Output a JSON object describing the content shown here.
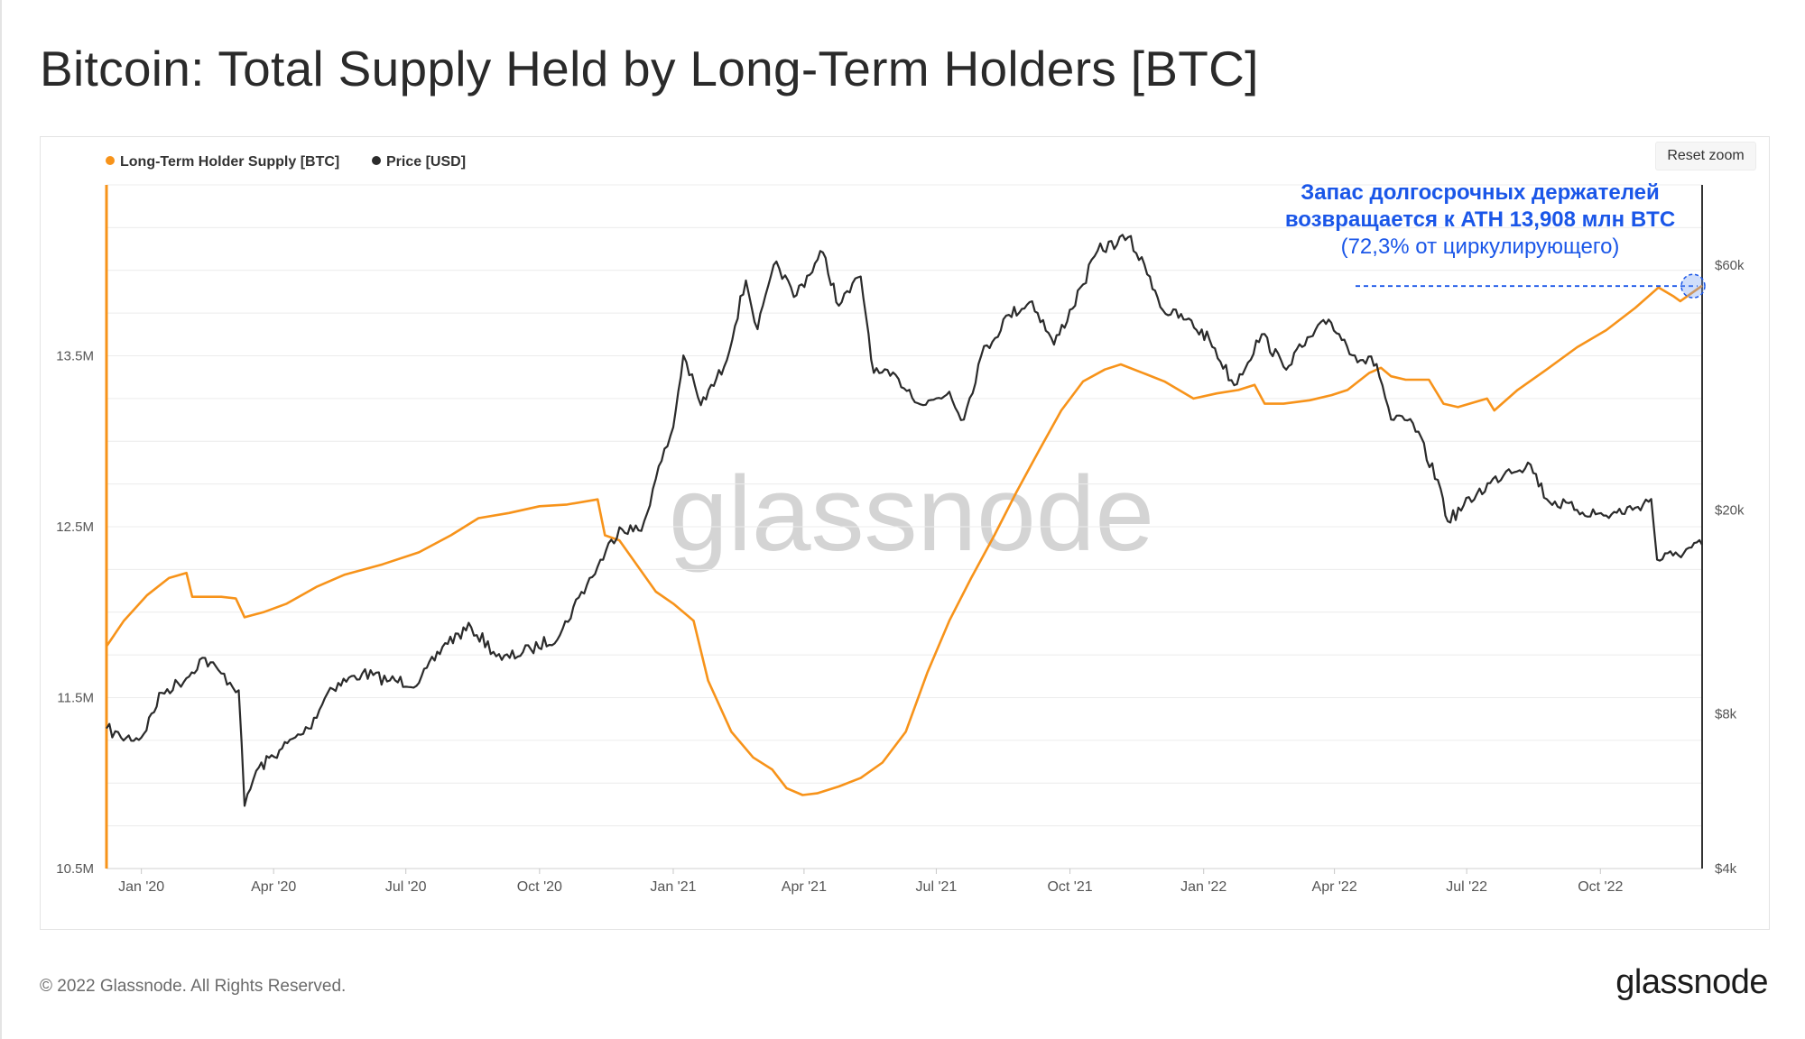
{
  "page": {
    "title": "Bitcoin: Total Supply Held by Long-Term Holders [BTC]",
    "reset_zoom_label": "Reset zoom",
    "watermark": "glassnode",
    "footer_copyright": "© 2022 Glassnode. All Rights Reserved.",
    "footer_logo": "glassnode"
  },
  "annotation": {
    "line1": "Запас долгосрочных держателей",
    "line2": "возвращается к ATH 13,908 млн BTC",
    "line3": "(72,3% от циркулирующего)",
    "color": "#1a56e8"
  },
  "chart_data": {
    "type": "line",
    "title": "Bitcoin: Total Supply Held by Long-Term Holders [BTC]",
    "legend_position": "top-left",
    "x_ticks": [
      "Jan '20",
      "Apr '20",
      "Jul '20",
      "Oct '20",
      "Jan '21",
      "Apr '21",
      "Jul '21",
      "Oct '21",
      "Jan '22",
      "Apr '22",
      "Jul '22",
      "Oct '22"
    ],
    "x_range": [
      "2019-12-08",
      "2022-12-10"
    ],
    "y_left": {
      "label": "",
      "ticks": [
        "10.5M",
        "11.5M",
        "12.5M",
        "13.5M"
      ],
      "range": [
        10.5,
        14.5
      ],
      "unit": "M BTC"
    },
    "y_right": {
      "label": "",
      "scale": "log",
      "ticks": [
        "$4k",
        "$8k",
        "$20k",
        "$60k"
      ],
      "values": [
        4000,
        8000,
        20000,
        60000
      ],
      "range": [
        4000,
        86000
      ]
    },
    "series": [
      {
        "name": "Long-Term Holder Supply [BTC]",
        "axis": "left",
        "color": "#f7931a",
        "points": [
          [
            "2019-12-08",
            11.8
          ],
          [
            "2019-12-20",
            11.95
          ],
          [
            "2020-01-05",
            12.1
          ],
          [
            "2020-01-20",
            12.2
          ],
          [
            "2020-02-01",
            12.23
          ],
          [
            "2020-02-05",
            12.09
          ],
          [
            "2020-02-25",
            12.09
          ],
          [
            "2020-03-06",
            12.08
          ],
          [
            "2020-03-12",
            11.97
          ],
          [
            "2020-03-25",
            12.0
          ],
          [
            "2020-04-10",
            12.05
          ],
          [
            "2020-05-01",
            12.15
          ],
          [
            "2020-05-20",
            12.22
          ],
          [
            "2020-06-15",
            12.28
          ],
          [
            "2020-07-10",
            12.35
          ],
          [
            "2020-08-01",
            12.45
          ],
          [
            "2020-08-20",
            12.55
          ],
          [
            "2020-09-10",
            12.58
          ],
          [
            "2020-10-01",
            12.62
          ],
          [
            "2020-10-20",
            12.63
          ],
          [
            "2020-11-10",
            12.66
          ],
          [
            "2020-11-15",
            12.45
          ],
          [
            "2020-11-25",
            12.42
          ],
          [
            "2020-12-05",
            12.3
          ],
          [
            "2020-12-20",
            12.12
          ],
          [
            "2021-01-01",
            12.05
          ],
          [
            "2021-01-15",
            11.95
          ],
          [
            "2021-01-25",
            11.6
          ],
          [
            "2021-02-10",
            11.3
          ],
          [
            "2021-02-25",
            11.15
          ],
          [
            "2021-03-10",
            11.08
          ],
          [
            "2021-03-20",
            10.97
          ],
          [
            "2021-03-31",
            10.93
          ],
          [
            "2021-04-10",
            10.94
          ],
          [
            "2021-04-25",
            10.98
          ],
          [
            "2021-05-10",
            11.03
          ],
          [
            "2021-05-25",
            11.12
          ],
          [
            "2021-06-10",
            11.3
          ],
          [
            "2021-06-25",
            11.65
          ],
          [
            "2021-07-10",
            11.95
          ],
          [
            "2021-07-25",
            12.2
          ],
          [
            "2021-08-10",
            12.45
          ],
          [
            "2021-08-25",
            12.7
          ],
          [
            "2021-09-10",
            12.95
          ],
          [
            "2021-09-25",
            13.18
          ],
          [
            "2021-10-10",
            13.35
          ],
          [
            "2021-10-25",
            13.42
          ],
          [
            "2021-11-05",
            13.45
          ],
          [
            "2021-11-20",
            13.4
          ],
          [
            "2021-12-05",
            13.35
          ],
          [
            "2021-12-15",
            13.3
          ],
          [
            "2021-12-25",
            13.25
          ],
          [
            "2022-01-10",
            13.28
          ],
          [
            "2022-01-25",
            13.3
          ],
          [
            "2022-02-05",
            13.33
          ],
          [
            "2022-02-12",
            13.22
          ],
          [
            "2022-02-25",
            13.22
          ],
          [
            "2022-03-15",
            13.24
          ],
          [
            "2022-03-30",
            13.27
          ],
          [
            "2022-04-10",
            13.3
          ],
          [
            "2022-04-25",
            13.4
          ],
          [
            "2022-05-03",
            13.43
          ],
          [
            "2022-05-10",
            13.38
          ],
          [
            "2022-05-20",
            13.36
          ],
          [
            "2022-06-05",
            13.36
          ],
          [
            "2022-06-15",
            13.22
          ],
          [
            "2022-06-25",
            13.2
          ],
          [
            "2022-07-15",
            13.25
          ],
          [
            "2022-07-20",
            13.18
          ],
          [
            "2022-08-05",
            13.3
          ],
          [
            "2022-08-25",
            13.42
          ],
          [
            "2022-09-15",
            13.55
          ],
          [
            "2022-10-05",
            13.65
          ],
          [
            "2022-10-25",
            13.78
          ],
          [
            "2022-11-10",
            13.9
          ],
          [
            "2022-11-20",
            13.85
          ],
          [
            "2022-11-25",
            13.82
          ],
          [
            "2022-12-10",
            13.91
          ]
        ]
      },
      {
        "name": "Price [USD]",
        "axis": "right",
        "color": "#2b2b2b",
        "points": [
          [
            "2019-12-08",
            7500
          ],
          [
            "2019-12-18",
            7200
          ],
          [
            "2020-01-01",
            7200
          ],
          [
            "2020-01-15",
            8800
          ],
          [
            "2020-02-01",
            9400
          ],
          [
            "2020-02-12",
            10300
          ],
          [
            "2020-02-25",
            9600
          ],
          [
            "2020-03-08",
            8900
          ],
          [
            "2020-03-12",
            5300
          ],
          [
            "2020-03-20",
            6200
          ],
          [
            "2020-04-05",
            6800
          ],
          [
            "2020-04-25",
            7500
          ],
          [
            "2020-05-10",
            9000
          ],
          [
            "2020-06-01",
            9600
          ],
          [
            "2020-06-20",
            9300
          ],
          [
            "2020-07-10",
            9200
          ],
          [
            "2020-07-28",
            11000
          ],
          [
            "2020-08-15",
            11800
          ],
          [
            "2020-09-05",
            10200
          ],
          [
            "2020-09-25",
            10700
          ],
          [
            "2020-10-15",
            11400
          ],
          [
            "2020-10-28",
            13500
          ],
          [
            "2020-11-10",
            15500
          ],
          [
            "2020-11-25",
            18500
          ],
          [
            "2020-12-10",
            18200
          ],
          [
            "2020-12-20",
            23000
          ],
          [
            "2021-01-01",
            29000
          ],
          [
            "2021-01-08",
            40000
          ],
          [
            "2021-01-20",
            32000
          ],
          [
            "2021-02-05",
            38000
          ],
          [
            "2021-02-20",
            56000
          ],
          [
            "2021-02-28",
            45000
          ],
          [
            "2021-03-13",
            61000
          ],
          [
            "2021-03-25",
            52000
          ],
          [
            "2021-04-14",
            63500
          ],
          [
            "2021-04-25",
            50000
          ],
          [
            "2021-05-10",
            57000
          ],
          [
            "2021-05-19",
            37000
          ],
          [
            "2021-06-05",
            36000
          ],
          [
            "2021-06-22",
            32000
          ],
          [
            "2021-07-10",
            34000
          ],
          [
            "2021-07-20",
            30000
          ],
          [
            "2021-08-01",
            40000
          ],
          [
            "2021-08-20",
            48000
          ],
          [
            "2021-09-05",
            51000
          ],
          [
            "2021-09-20",
            42000
          ],
          [
            "2021-10-10",
            55000
          ],
          [
            "2021-10-20",
            64000
          ],
          [
            "2021-11-10",
            68000
          ],
          [
            "2021-11-25",
            57000
          ],
          [
            "2021-12-04",
            49000
          ],
          [
            "2021-12-20",
            47000
          ],
          [
            "2022-01-05",
            43000
          ],
          [
            "2022-01-22",
            35000
          ],
          [
            "2022-02-10",
            44000
          ],
          [
            "2022-02-25",
            38000
          ],
          [
            "2022-03-28",
            47000
          ],
          [
            "2022-04-15",
            40000
          ],
          [
            "2022-04-30",
            38500
          ],
          [
            "2022-05-10",
            30000
          ],
          [
            "2022-05-25",
            29500
          ],
          [
            "2022-06-13",
            22000
          ],
          [
            "2022-06-18",
            19000
          ],
          [
            "2022-07-08",
            21500
          ],
          [
            "2022-07-30",
            24000
          ],
          [
            "2022-08-14",
            24500
          ],
          [
            "2022-08-25",
            21000
          ],
          [
            "2022-09-15",
            20000
          ],
          [
            "2022-10-05",
            19500
          ],
          [
            "2022-10-25",
            20200
          ],
          [
            "2022-11-05",
            21000
          ],
          [
            "2022-11-09",
            16000
          ],
          [
            "2022-11-20",
            16300
          ],
          [
            "2022-12-10",
            17100
          ]
        ]
      }
    ],
    "annotation": {
      "text": [
        "Запас долгосрочных держателей",
        "возвращается к ATH 13,908 млн BTC",
        "(72,3% от циркулирующего)"
      ],
      "value": 13.908
    }
  }
}
